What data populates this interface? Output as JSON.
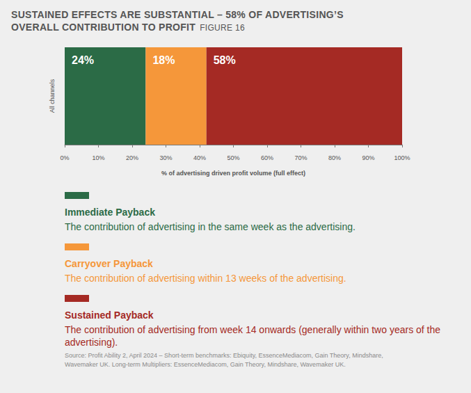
{
  "chart_data": {
    "type": "bar",
    "orientation": "horizontal",
    "stacked": true,
    "data_labels": true,
    "grid": false,
    "title": "SUSTAINED EFFECTS ARE SUBSTANTIAL – 58% OF ADVERTISING’S OVERALL CONTRIBUTION TO PROFIT",
    "subtitle": "FIGURE 16",
    "x_label": "% of advertising driven profit volume (full effect)",
    "categories": [
      "All channels"
    ],
    "series": [
      {
        "name": "Immediate Payback",
        "description": "The contribution of advertising in the same week as the advertising.",
        "color": "#2b6b46",
        "values": [
          24
        ],
        "value_labels": [
          "24%"
        ]
      },
      {
        "name": "Carryover Payback",
        "description": "The contribution of advertising within 13 weeks of the advertising.",
        "color": "#f5973a",
        "values": [
          18
        ],
        "value_labels": [
          "18%"
        ]
      },
      {
        "name": "Sustained Payback",
        "description": "The contribution of advertising from week 14 onwards (generally within two years of the advertising).",
        "color": "#a52a24",
        "values": [
          58
        ],
        "value_labels": [
          "58%"
        ]
      }
    ],
    "xlim": [
      0,
      100
    ],
    "xticks": [
      {
        "value": 0,
        "label": "0%"
      },
      {
        "value": 10,
        "label": "10%"
      },
      {
        "value": 20,
        "label": "20%"
      },
      {
        "value": 30,
        "label": "30%"
      },
      {
        "value": 40,
        "label": "40%"
      },
      {
        "value": 50,
        "label": "50%"
      },
      {
        "value": 60,
        "label": "60%"
      },
      {
        "value": 70,
        "label": "70%"
      },
      {
        "value": 80,
        "label": "80%"
      },
      {
        "value": 90,
        "label": "90%"
      },
      {
        "value": 100,
        "label": "100%"
      }
    ],
    "source": "Source: Profit Ability 2, April 2024 – Short-term benchmarks: Ebiquity, EssenceMediacom, Gain Theory, Mindshare, Wavemaker UK. Long-term Multipliers: EssenceMediacom, Gain Theory, Mindshare, Wavemaker UK."
  }
}
